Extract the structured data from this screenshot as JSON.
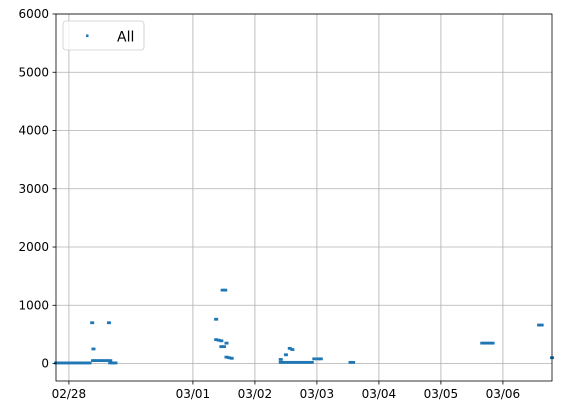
{
  "chart_data": {
    "type": "scatter",
    "title": "",
    "xlabel": "",
    "ylabel": "",
    "xlim": [
      "02/27 19:00",
      "03/06 19:00"
    ],
    "ylim": [
      -300,
      6000
    ],
    "x_ticks": [
      "02/28",
      "03/01",
      "03/02",
      "03/03",
      "03/04",
      "03/05",
      "03/06"
    ],
    "y_ticks": [
      0,
      1000,
      2000,
      3000,
      4000,
      5000,
      6000
    ],
    "grid": true,
    "legend": {
      "placement": "top-left",
      "entries": [
        "All"
      ]
    },
    "series": [
      {
        "name": "All",
        "color": "#1f77b4",
        "points": [
          [
            "02/27 19:00",
            10
          ],
          [
            "02/27 20:00",
            10
          ],
          [
            "02/27 21:00",
            10
          ],
          [
            "02/27 22:00",
            10
          ],
          [
            "02/27 23:00",
            10
          ],
          [
            "02/28 00:00",
            10
          ],
          [
            "02/28 01:00",
            10
          ],
          [
            "02/28 02:00",
            10
          ],
          [
            "02/28 03:00",
            10
          ],
          [
            "02/28 04:00",
            10
          ],
          [
            "02/28 05:00",
            10
          ],
          [
            "02/28 06:00",
            10
          ],
          [
            "02/28 07:00",
            10
          ],
          [
            "02/28 08:00",
            10
          ],
          [
            "02/28 09:00",
            700
          ],
          [
            "02/28 09:30",
            250
          ],
          [
            "02/28 09:20",
            50
          ],
          [
            "02/28 10:00",
            50
          ],
          [
            "02/28 11:00",
            50
          ],
          [
            "02/28 12:00",
            50
          ],
          [
            "02/28 13:00",
            50
          ],
          [
            "02/28 14:00",
            50
          ],
          [
            "02/28 15:00",
            50
          ],
          [
            "02/28 15:30",
            700
          ],
          [
            "02/28 16:00",
            50
          ],
          [
            "02/28 16:00",
            10
          ],
          [
            "02/28 17:00",
            10
          ],
          [
            "02/28 18:00",
            10
          ],
          [
            "03/01 09:00",
            760
          ],
          [
            "03/01 09:00",
            410
          ],
          [
            "03/01 10:00",
            400
          ],
          [
            "03/01 11:00",
            390
          ],
          [
            "03/01 11:00",
            290
          ],
          [
            "03/01 12:00",
            290
          ],
          [
            "03/01 11:30",
            1260
          ],
          [
            "03/01 12:30",
            1260
          ],
          [
            "03/01 13:00",
            350
          ],
          [
            "03/01 13:00",
            110
          ],
          [
            "03/01 14:00",
            100
          ],
          [
            "03/01 15:00",
            90
          ],
          [
            "03/02 10:00",
            70
          ],
          [
            "03/02 10:00",
            20
          ],
          [
            "03/02 11:00",
            20
          ],
          [
            "03/02 12:00",
            20
          ],
          [
            "03/02 12:00",
            150
          ],
          [
            "03/02 13:30",
            260
          ],
          [
            "03/02 14:30",
            240
          ],
          [
            "03/02 13:00",
            20
          ],
          [
            "03/02 14:00",
            20
          ],
          [
            "03/02 15:00",
            20
          ],
          [
            "03/02 16:00",
            20
          ],
          [
            "03/02 17:00",
            20
          ],
          [
            "03/02 18:00",
            20
          ],
          [
            "03/02 19:00",
            20
          ],
          [
            "03/02 20:00",
            20
          ],
          [
            "03/02 21:00",
            20
          ],
          [
            "03/02 22:00",
            20
          ],
          [
            "03/02 23:00",
            80
          ],
          [
            "03/03 00:30",
            80
          ],
          [
            "03/03 01:30",
            80
          ],
          [
            "03/03 13:00",
            20
          ],
          [
            "03/03 14:00",
            20
          ],
          [
            "03/05 16:00",
            350
          ],
          [
            "03/05 17:00",
            350
          ],
          [
            "03/05 18:00",
            350
          ],
          [
            "03/05 19:00",
            350
          ],
          [
            "03/05 20:00",
            350
          ],
          [
            "03/06 14:00",
            660
          ],
          [
            "03/06 15:00",
            660
          ],
          [
            "03/06 19:00",
            100
          ]
        ]
      }
    ]
  }
}
